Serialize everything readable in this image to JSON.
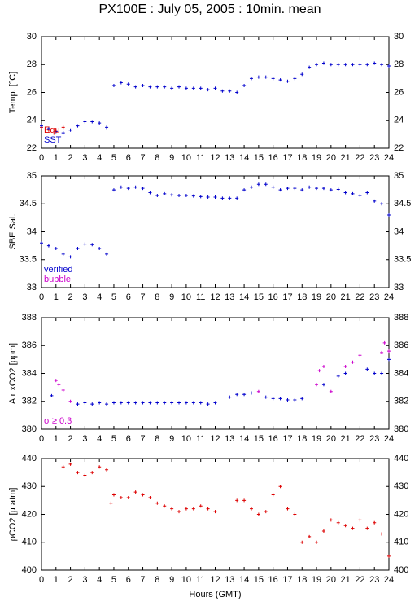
{
  "chart_data": [
    {
      "type": "scatter",
      "title": "PX100E : July 05, 2005 : 10min. mean",
      "ylabel": "Temp. [°C]",
      "legend": "lower left",
      "xlim": [
        0,
        24
      ],
      "xticks": [
        0,
        1,
        2,
        3,
        4,
        5,
        6,
        7,
        8,
        9,
        10,
        11,
        12,
        13,
        14,
        15,
        16,
        17,
        18,
        19,
        20,
        21,
        22,
        23,
        24
      ],
      "ylim": [
        22,
        30
      ],
      "yticks": [
        22,
        24,
        26,
        28,
        30
      ],
      "series": [
        {
          "name": "Equ",
          "color": "#dd0000",
          "x": [
            0,
            0.5,
            1,
            1.5
          ],
          "values": [
            23.5,
            23.3,
            23.3,
            23.5
          ]
        },
        {
          "name": "SST",
          "color": "#0000cc",
          "x": [
            0,
            0.5,
            1,
            1.5,
            2,
            2.5,
            3,
            3.5,
            4,
            4.5,
            5,
            5.5,
            6,
            6.5,
            7,
            7.5,
            8,
            8.5,
            9,
            9.5,
            10,
            10.5,
            11,
            11.5,
            12,
            12.5,
            13,
            13.5,
            14,
            14.5,
            15,
            15.5,
            16,
            16.5,
            17,
            17.5,
            18,
            18.5,
            19,
            19.5,
            20,
            20.5,
            21,
            21.5,
            22,
            22.5,
            23,
            23.5,
            24
          ],
          "values": [
            23.6,
            23.4,
            23.2,
            23.1,
            23.3,
            23.6,
            23.9,
            23.9,
            23.8,
            23.5,
            26.5,
            26.7,
            26.6,
            26.4,
            26.5,
            26.4,
            26.4,
            26.4,
            26.3,
            26.4,
            26.3,
            26.3,
            26.3,
            26.2,
            26.3,
            26.1,
            26.1,
            26.0,
            26.5,
            27.0,
            27.1,
            27.1,
            27.0,
            26.9,
            26.8,
            27.0,
            27.3,
            27.8,
            28.0,
            28.1,
            28.0,
            28.0,
            28.0,
            28.0,
            28.0,
            28.0,
            28.1,
            28.0,
            27.9
          ]
        }
      ]
    },
    {
      "type": "scatter",
      "ylabel": "SBE Sal.",
      "legend": "lower left",
      "xlim": [
        0,
        24
      ],
      "xticks": [
        0,
        1,
        2,
        3,
        4,
        5,
        6,
        7,
        8,
        9,
        10,
        11,
        12,
        13,
        14,
        15,
        16,
        17,
        18,
        19,
        20,
        21,
        22,
        23,
        24
      ],
      "ylim": [
        33,
        35
      ],
      "yticks": [
        33,
        33.5,
        34,
        34.5,
        35
      ],
      "series": [
        {
          "name": "verified",
          "color": "#0000cc",
          "x": [
            0,
            0.5,
            1,
            1.5,
            2,
            2.5,
            3,
            3.5,
            4,
            4.5,
            5,
            5.5,
            6,
            6.5,
            7,
            7.5,
            8,
            8.5,
            9,
            9.5,
            10,
            10.5,
            11,
            11.5,
            12,
            12.5,
            13,
            13.5,
            14,
            14.5,
            15,
            15.5,
            16,
            16.5,
            17,
            17.5,
            18,
            18.5,
            19,
            19.5,
            20,
            20.5,
            21,
            21.5,
            22,
            22.5,
            23,
            23.5,
            24
          ],
          "values": [
            33.8,
            33.75,
            33.7,
            33.6,
            33.55,
            33.7,
            33.78,
            33.77,
            33.7,
            33.6,
            34.75,
            34.8,
            34.78,
            34.8,
            34.78,
            34.7,
            34.65,
            34.68,
            34.66,
            34.65,
            34.65,
            34.64,
            34.63,
            34.62,
            34.62,
            34.6,
            34.6,
            34.6,
            34.75,
            34.8,
            34.85,
            34.85,
            34.8,
            34.75,
            34.78,
            34.78,
            34.75,
            34.8,
            34.78,
            34.78,
            34.75,
            34.76,
            34.7,
            34.68,
            34.65,
            34.7,
            34.55,
            34.5,
            34.3
          ]
        },
        {
          "name": "bubble",
          "color": "#cc00cc",
          "x": [],
          "values": []
        }
      ]
    },
    {
      "type": "scatter",
      "ylabel": "Air xCO2 [ppm]",
      "legend": "lower left",
      "xlim": [
        0,
        24
      ],
      "xticks": [
        0,
        1,
        2,
        3,
        4,
        5,
        6,
        7,
        8,
        9,
        10,
        11,
        12,
        13,
        14,
        15,
        16,
        17,
        18,
        19,
        20,
        21,
        22,
        23,
        24
      ],
      "ylim": [
        380,
        388
      ],
      "yticks": [
        380,
        382,
        384,
        386,
        388
      ],
      "series": [
        {
          "color": "#0000cc",
          "x": [
            0.7,
            2.5,
            3,
            3.5,
            4,
            4.5,
            5,
            5.5,
            6,
            6.5,
            7,
            7.5,
            8,
            8.5,
            9,
            9.5,
            10,
            10.5,
            11,
            11.5,
            12,
            13,
            13.5,
            14,
            14.5,
            15.5,
            16,
            16.5,
            17,
            17.5,
            18,
            19.5,
            20.5,
            21,
            22.5,
            23,
            23.5,
            24
          ],
          "values": [
            382.4,
            381.8,
            381.9,
            381.8,
            381.9,
            381.8,
            381.9,
            381.9,
            381.9,
            381.9,
            381.9,
            381.9,
            381.9,
            381.9,
            381.9,
            381.9,
            381.9,
            381.9,
            381.9,
            381.8,
            381.9,
            382.3,
            382.5,
            382.5,
            382.6,
            382.3,
            382.2,
            382.2,
            382.1,
            382.1,
            382.2,
            383.2,
            383.8,
            384.0,
            384.3,
            384.0,
            384.0,
            385.0
          ]
        },
        {
          "name": "σ ≥ 0.3",
          "color": "#cc00cc",
          "x": [
            1,
            1.2,
            1.5,
            2,
            15,
            19,
            19.2,
            19.5,
            20,
            21,
            21.5,
            22,
            23.5,
            23.7,
            24
          ],
          "values": [
            383.5,
            383.2,
            382.8,
            382.0,
            382.7,
            383.2,
            384.2,
            384.5,
            382.7,
            384.5,
            384.8,
            385.3,
            385.5,
            386.2,
            385.6
          ]
        }
      ]
    },
    {
      "type": "scatter",
      "ylabel": "ρCO2 [µ atm]",
      "xlabel": "Hours (GMT)",
      "xlim": [
        0,
        24
      ],
      "xticks": [
        0,
        1,
        2,
        3,
        4,
        5,
        6,
        7,
        8,
        9,
        10,
        11,
        12,
        13,
        14,
        15,
        16,
        17,
        18,
        19,
        20,
        21,
        22,
        23,
        24
      ],
      "ylim": [
        400,
        440
      ],
      "yticks": [
        400,
        410,
        420,
        430,
        440
      ],
      "series": [
        {
          "color": "#dd0000",
          "x": [
            1.5,
            2,
            2.5,
            3,
            3.5,
            4,
            4.5,
            4.8,
            5,
            5.5,
            6,
            6.5,
            7,
            7.5,
            8,
            8.5,
            9,
            9.5,
            10,
            10.5,
            11,
            11.5,
            12,
            13.5,
            14,
            14.5,
            15,
            15.5,
            16,
            16.5,
            17,
            17.5,
            18,
            18.5,
            19,
            19.5,
            20,
            20.5,
            21,
            21.5,
            22,
            22.5,
            23,
            23.5,
            24
          ],
          "values": [
            437,
            438,
            435,
            434,
            435,
            437,
            436,
            424,
            427,
            426,
            426,
            428,
            427,
            426,
            424,
            423,
            422,
            421,
            422,
            422,
            423,
            422,
            421,
            425,
            425,
            422,
            420,
            421,
            427,
            430,
            422,
            420,
            410,
            412,
            410,
            414,
            418,
            417,
            416,
            415,
            418,
            415,
            417,
            413,
            405
          ]
        }
      ]
    }
  ]
}
